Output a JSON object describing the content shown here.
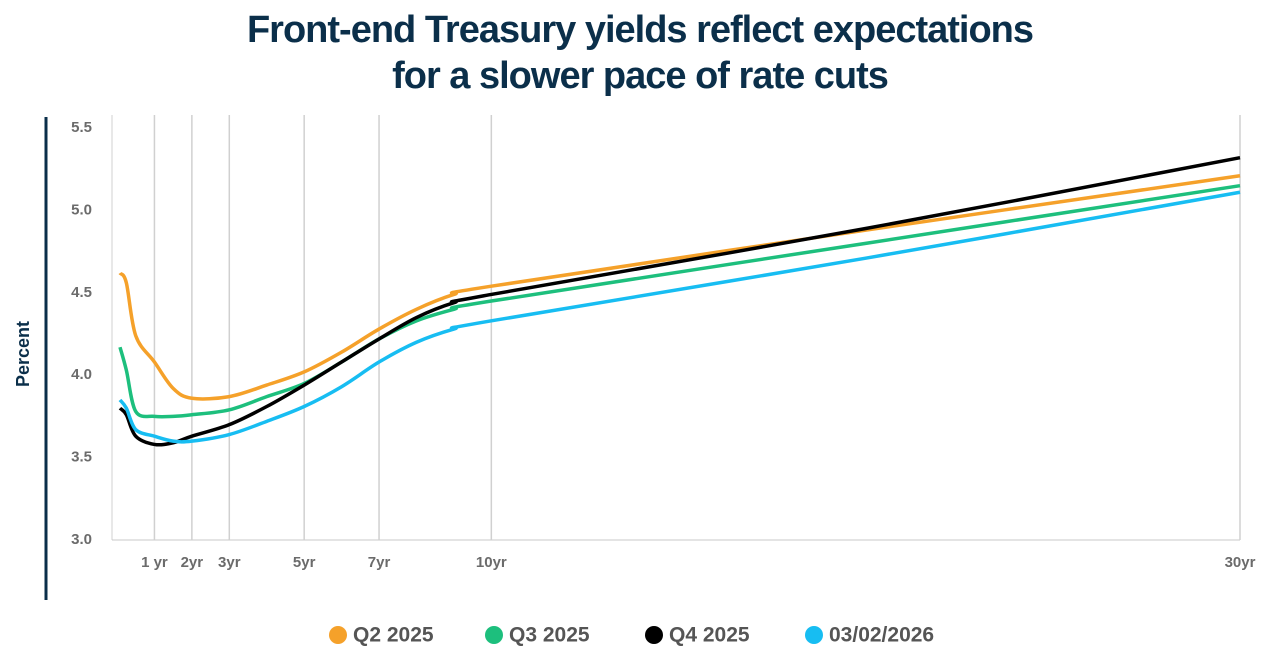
{
  "chart_data": {
    "type": "line",
    "title": [
      "Front-end Treasury yields reflect expectations",
      "for a slower pace of rate cuts"
    ],
    "y_label": "Percent",
    "x": [
      0.08,
      0.25,
      0.5,
      1,
      1.5,
      2,
      3,
      4,
      5,
      6,
      7,
      8,
      9,
      10,
      20,
      30
    ],
    "series": [
      {
        "name": "Q2 2025",
        "color": "#f5a12a",
        "values": [
          4.62,
          4.56,
          4.24,
          4.08,
          3.92,
          3.86,
          3.87,
          3.94,
          4.02,
          4.14,
          4.28,
          4.4,
          4.49,
          4.54,
          4.88,
          5.21
        ]
      },
      {
        "name": "Q3 2025",
        "color": "#1dbf7d",
        "values": [
          4.17,
          4.03,
          3.78,
          3.75,
          3.75,
          3.76,
          3.79,
          3.87,
          3.95,
          4.08,
          4.22,
          4.33,
          4.4,
          4.45,
          4.8,
          5.15
        ]
      },
      {
        "name": "Q4 2025",
        "color": "#000000",
        "values": [
          3.8,
          3.76,
          3.63,
          3.58,
          3.59,
          3.63,
          3.7,
          3.81,
          3.94,
          4.08,
          4.22,
          4.35,
          4.44,
          4.49,
          4.89,
          5.32
        ]
      },
      {
        "name": "03/02/2026",
        "color": "#17bdf2",
        "values": [
          3.85,
          3.8,
          3.67,
          3.63,
          3.6,
          3.6,
          3.64,
          3.72,
          3.81,
          3.93,
          4.08,
          4.2,
          4.28,
          4.33,
          4.71,
          5.11
        ]
      }
    ],
    "xlim": [
      0,
      30
    ],
    "xticks": [
      {
        "value": 1,
        "label": "1 yr"
      },
      {
        "value": 2,
        "label": "2yr"
      },
      {
        "value": 3,
        "label": "3yr"
      },
      {
        "value": 5,
        "label": "5yr"
      },
      {
        "value": 7,
        "label": "7yr"
      },
      {
        "value": 10,
        "label": "10yr"
      },
      {
        "value": 30,
        "label": "30yr"
      }
    ],
    "ylim": [
      3,
      5.5
    ],
    "yticks": [
      {
        "value": 3,
        "label": "3.0"
      },
      3.5,
      {
        "value": 4,
        "label": "4.0"
      },
      4.5,
      {
        "value": 5,
        "label": "5.0"
      },
      5.5
    ],
    "grid": true
  }
}
